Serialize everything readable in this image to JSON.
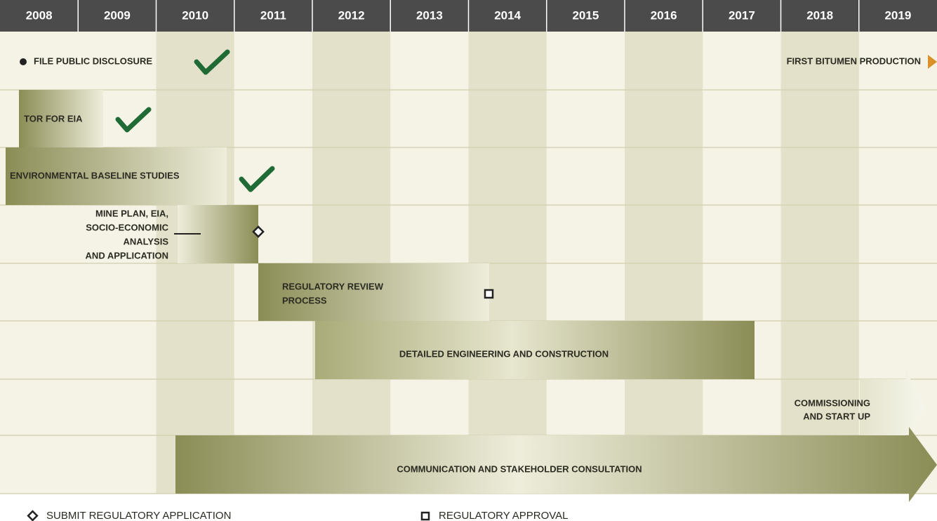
{
  "years": [
    "2008",
    "2009",
    "2010",
    "2011",
    "2012",
    "2013",
    "2014",
    "2015",
    "2016",
    "2017",
    "2018",
    "2019"
  ],
  "milestones": {
    "start": "FILE PUBLIC DISCLOSURE",
    "end": "FIRST BITUMEN PRODUCTION"
  },
  "tasks": [
    {
      "label": [
        "TOR FOR EIA"
      ]
    },
    {
      "label": [
        "ENVIRONMENTAL BASELINE STUDIES"
      ]
    },
    {
      "label": [
        "MINE PLAN, EIA,",
        "SOCIO-ECONOMIC",
        "ANALYSIS",
        "AND APPLICATION"
      ]
    },
    {
      "label": [
        "REGULATORY REVIEW",
        "PROCESS"
      ]
    },
    {
      "label": [
        "DETAILED ENGINEERING AND CONSTRUCTION"
      ]
    },
    {
      "label": [
        "COMMISSIONING",
        "AND START UP"
      ]
    },
    {
      "label": [
        "COMMUNICATION AND STAKEHOLDER CONSULTATION"
      ]
    }
  ],
  "legend": {
    "submit": "SUBMIT REGULATORY APPLICATION",
    "approval": "REGULATORY APPROVAL"
  }
}
